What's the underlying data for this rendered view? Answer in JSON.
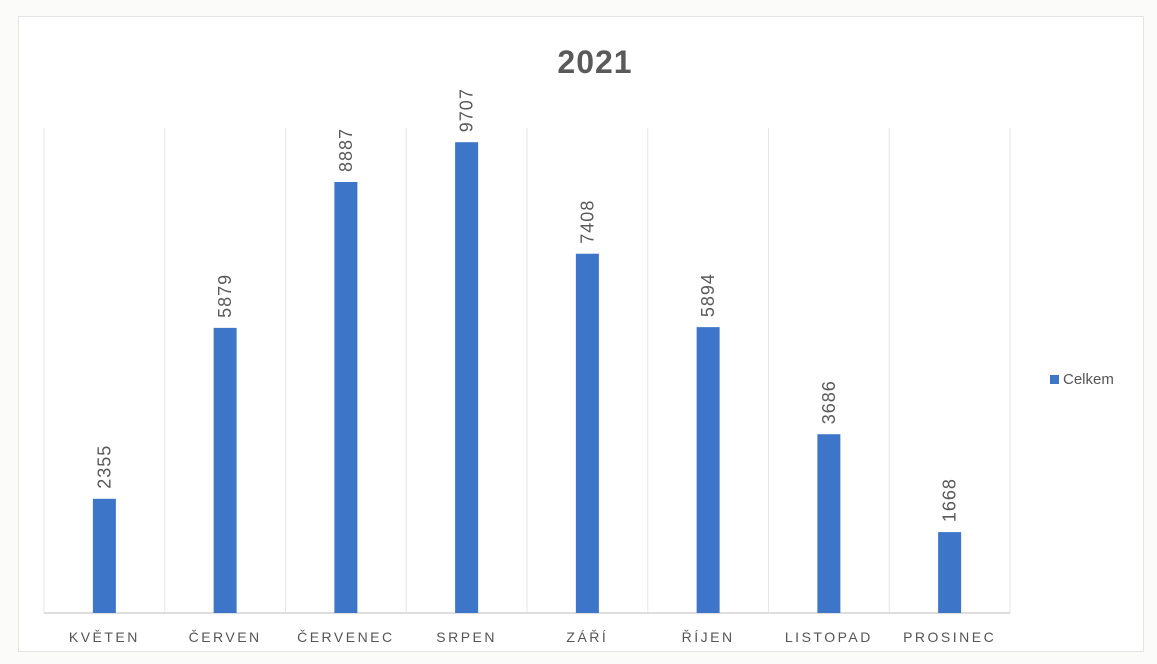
{
  "chart_data": {
    "type": "bar",
    "title": "2021",
    "categories": [
      "KVĚTEN",
      "ČERVEN",
      "ČERVENEC",
      "SRPEN",
      "ZÁŘÍ",
      "ŘÍJEN",
      "LISTOPAD",
      "PROSINEC"
    ],
    "series": [
      {
        "name": "Celkem",
        "values": [
          2355,
          5879,
          8887,
          9707,
          7408,
          5894,
          3686,
          1668
        ],
        "color": "#3d76c9"
      }
    ],
    "data_label_orientation": "vertical",
    "ylim": [
      0,
      10000
    ],
    "grid": "vertical",
    "legend_position": "right"
  }
}
